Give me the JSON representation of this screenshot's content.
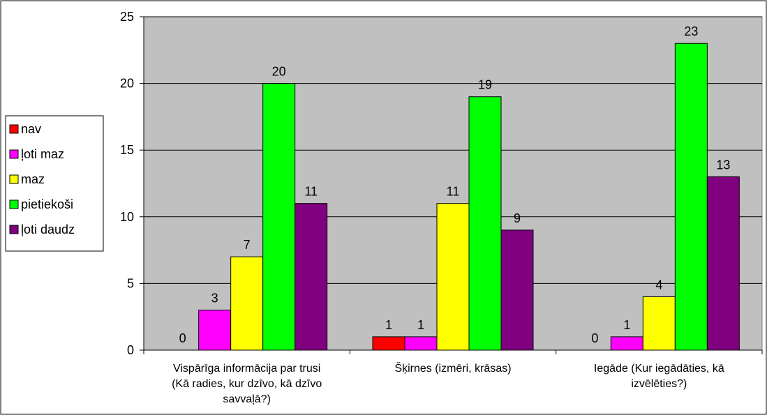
{
  "chart_data": {
    "type": "bar",
    "categories": [
      [
        "Vispārīga informācija par trusi",
        "(Kā radies, kur dzīvo, kā dzīvo",
        "savvaļā?)"
      ],
      [
        "Šķirnes (izmēri, krāsas)"
      ],
      [
        "Iegāde (Kur iegādāties, kā",
        "izvēlēties?)"
      ]
    ],
    "series": [
      {
        "name": "nav",
        "color": "#ff0000",
        "values": [
          0,
          1,
          0
        ]
      },
      {
        "name": "ļoti maz",
        "color": "#ff00ff",
        "values": [
          3,
          1,
          1
        ]
      },
      {
        "name": "maz",
        "color": "#ffff00",
        "values": [
          7,
          11,
          4
        ]
      },
      {
        "name": "pietiekoši",
        "color": "#00ff00",
        "values": [
          20,
          19,
          23
        ]
      },
      {
        "name": "ļoti daudz",
        "color": "#800080",
        "values": [
          11,
          9,
          13
        ]
      }
    ],
    "ylim": [
      0,
      25
    ],
    "yticks": [
      0,
      5,
      10,
      15,
      20,
      25
    ],
    "grid": true,
    "plot_background": "#c0c0c0",
    "legend_placement": "left"
  }
}
